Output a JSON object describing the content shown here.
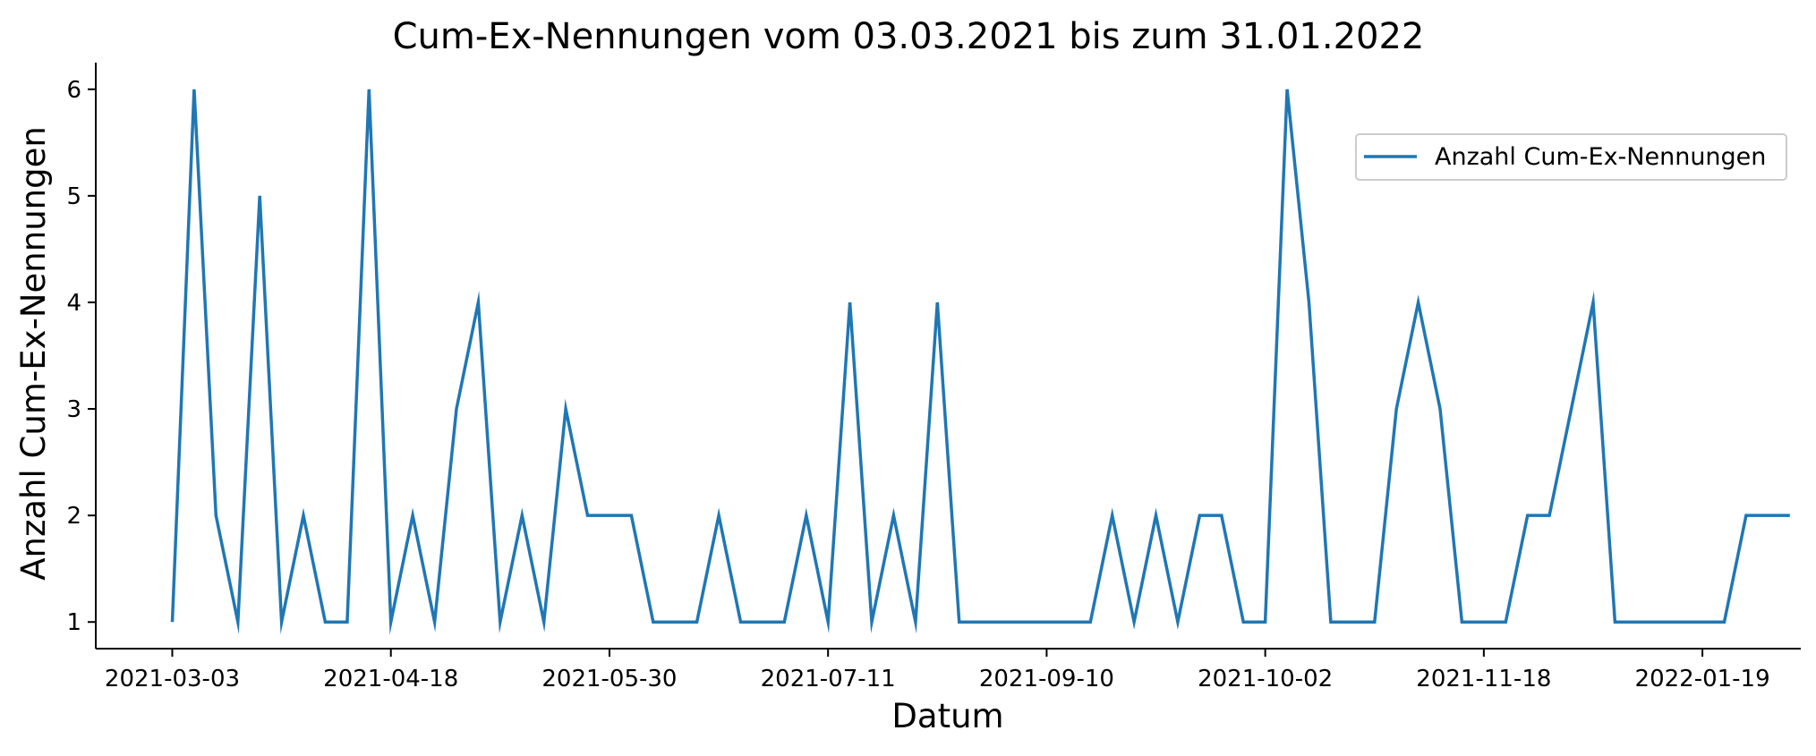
{
  "chart_data": {
    "type": "line",
    "title": "Cum-Ex-Nennungen vom 03.03.2021 bis zum 31.01.2022",
    "xlabel": "Datum",
    "ylabel": "Anzahl Cum-Ex-Nennungen",
    "x_tick_labels": [
      "2021-03-03",
      "2021-04-18",
      "2021-05-30",
      "2021-07-11",
      "2021-09-10",
      "2021-10-02",
      "2021-11-18",
      "2022-01-19"
    ],
    "x_tick_positions": [
      0,
      10,
      20,
      30,
      40,
      50,
      60,
      70
    ],
    "yticks": [
      1,
      2,
      3,
      4,
      5,
      6
    ],
    "ylim": [
      0.75,
      6.25
    ],
    "xlim": [
      -3.5,
      74.5
    ],
    "grid": false,
    "legend": {
      "position": "upper-right"
    },
    "colors": {
      "series": "#1f77b4"
    },
    "series": [
      {
        "name": "Anzahl Cum-Ex-Nennungen",
        "values": [
          1,
          6,
          2,
          1,
          5,
          1,
          2,
          1,
          1,
          6,
          1,
          2,
          1,
          3,
          4,
          1,
          2,
          1,
          3,
          2,
          2,
          2,
          1,
          1,
          1,
          2,
          1,
          1,
          1,
          2,
          1,
          4,
          1,
          2,
          1,
          4,
          1,
          1,
          1,
          1,
          1,
          1,
          1,
          2,
          1,
          2,
          1,
          2,
          2,
          1,
          1,
          6,
          4,
          1,
          1,
          1,
          3,
          4,
          3,
          1,
          1,
          1,
          2,
          2,
          3,
          4,
          1,
          1,
          1,
          1,
          1,
          1,
          2,
          2,
          2
        ]
      }
    ]
  }
}
